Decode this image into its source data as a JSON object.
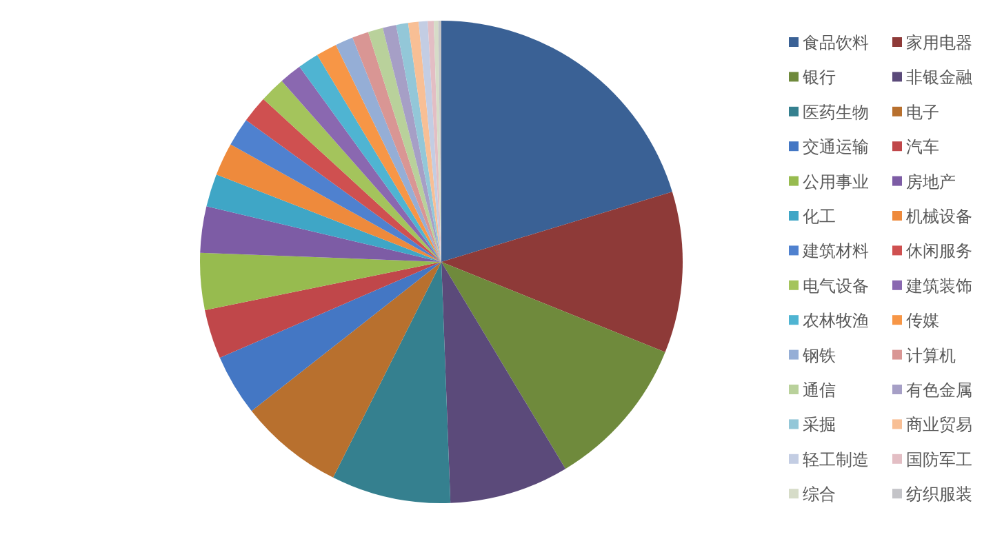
{
  "chart_data": {
    "type": "pie",
    "legend": "right",
    "categories": [
      "食品饮料",
      "家用电器",
      "银行",
      "非银金融",
      "医药生物",
      "电子",
      "交通运输",
      "汽车",
      "公用事业",
      "房地产",
      "化工",
      "机械设备",
      "建筑材料",
      "休闲服务",
      "电气设备",
      "建筑装饰",
      "农林牧渔",
      "传媒",
      "钢铁",
      "计算机",
      "通信",
      "有色金属",
      "采掘",
      "商业贸易",
      "轻工制造",
      "国防军工",
      "综合",
      "纺织服装"
    ],
    "values": [
      20.3,
      10.8,
      10.3,
      8,
      8,
      7,
      4.1,
      3.3,
      3.8,
      3.1,
      2.2,
      2.2,
      1.9,
      1.8,
      1.7,
      1.5,
      1.4,
      1.4,
      1.2,
      1.1,
      1.0,
      0.9,
      0.8,
      0.7,
      0.6,
      0.4,
      0.3,
      0.2
    ],
    "colors": [
      "#3a6195",
      "#8e3a38",
      "#6f8a3c",
      "#5b4a7a",
      "#35808f",
      "#b8702e",
      "#4477c4",
      "#c0474a",
      "#97bb4f",
      "#7d5ca5",
      "#3fa6c6",
      "#ee8a3c",
      "#4f81cf",
      "#cf5050",
      "#a4c45c",
      "#8a68b0",
      "#4fb4d2",
      "#f79646",
      "#95aed6",
      "#d99694",
      "#b9d19b",
      "#a69fc6",
      "#93c7d8",
      "#f8bf95",
      "#c3cde3",
      "#e3bec4",
      "#d6dcc8",
      "#c4c4c8"
    ]
  }
}
